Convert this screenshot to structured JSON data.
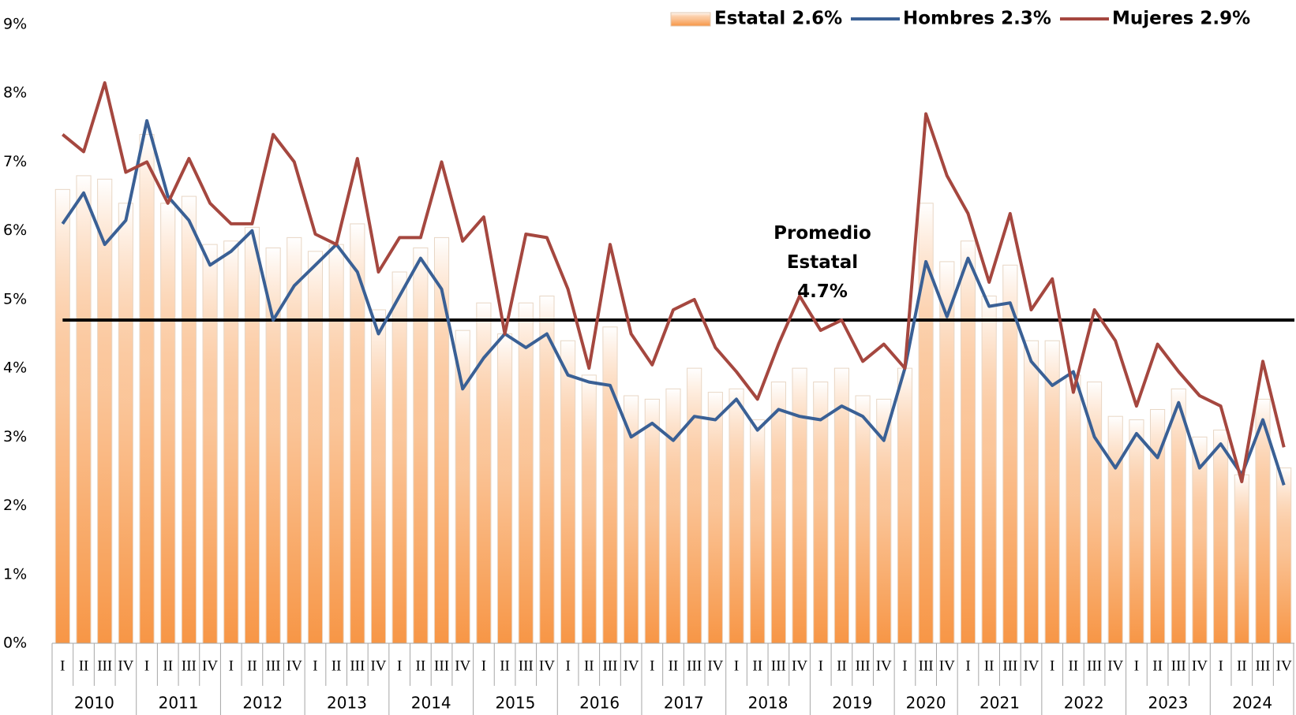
{
  "chart_data": {
    "type": "bar_line",
    "groups": [
      {
        "name": "2010",
        "categories": [
          "I",
          "II",
          "III",
          "IV"
        ]
      },
      {
        "name": "2011",
        "categories": [
          "I",
          "II",
          "III",
          "IV"
        ]
      },
      {
        "name": "2012",
        "categories": [
          "I",
          "II",
          "III",
          "IV"
        ]
      },
      {
        "name": "2013",
        "categories": [
          "I",
          "II",
          "III",
          "IV"
        ]
      },
      {
        "name": "2014",
        "categories": [
          "I",
          "II",
          "III",
          "IV"
        ]
      },
      {
        "name": "2015",
        "categories": [
          "I",
          "II",
          "III",
          "IV"
        ]
      },
      {
        "name": "2016",
        "categories": [
          "I",
          "II",
          "III",
          "IV"
        ]
      },
      {
        "name": "2017",
        "categories": [
          "I",
          "II",
          "III",
          "IV"
        ]
      },
      {
        "name": "2018",
        "categories": [
          "I",
          "II",
          "III",
          "IV"
        ]
      },
      {
        "name": "2019",
        "categories": [
          "I",
          "II",
          "III",
          "IV"
        ]
      },
      {
        "name": "2020",
        "categories": [
          "I",
          "III",
          "IV"
        ]
      },
      {
        "name": "2021",
        "categories": [
          "I",
          "II",
          "III",
          "IV"
        ]
      },
      {
        "name": "2022",
        "categories": [
          "I",
          "II",
          "III",
          "IV"
        ]
      },
      {
        "name": "2023",
        "categories": [
          "I",
          "II",
          "III",
          "IV"
        ]
      },
      {
        "name": "2024",
        "categories": [
          "I",
          "II",
          "III",
          "IV"
        ]
      }
    ],
    "series": [
      {
        "name": "Estatal 2.6%",
        "kind": "bar",
        "color": "#f79646",
        "values": [
          6.6,
          6.8,
          6.75,
          6.4,
          7.4,
          6.4,
          6.5,
          5.8,
          5.85,
          6.05,
          5.75,
          5.9,
          5.7,
          5.8,
          6.1,
          4.85,
          5.4,
          5.75,
          5.9,
          4.55,
          4.95,
          4.5,
          4.95,
          5.05,
          4.4,
          3.9,
          4.6,
          3.6,
          3.55,
          3.7,
          4.0,
          3.65,
          3.7,
          3.25,
          3.8,
          4.0,
          3.8,
          4.0,
          3.6,
          3.55,
          4.0,
          6.4,
          5.55,
          5.85,
          5.05,
          5.5,
          4.4,
          4.4,
          3.9,
          3.8,
          3.3,
          3.25,
          3.4,
          3.7,
          3.0,
          3.1,
          2.45,
          3.55,
          2.55
        ]
      },
      {
        "name": "Hombres 2.3%",
        "kind": "line",
        "color": "#3a6095",
        "values": [
          6.1,
          6.55,
          5.8,
          6.15,
          7.6,
          6.5,
          6.15,
          5.5,
          5.7,
          6.0,
          4.7,
          5.2,
          5.5,
          5.8,
          5.4,
          4.5,
          5.05,
          5.6,
          5.15,
          3.7,
          4.15,
          4.5,
          4.3,
          4.5,
          3.9,
          3.8,
          3.75,
          3.0,
          3.2,
          2.95,
          3.3,
          3.25,
          3.55,
          3.1,
          3.4,
          3.3,
          3.25,
          3.45,
          3.3,
          2.95,
          4.0,
          5.55,
          4.75,
          5.6,
          4.9,
          4.95,
          4.1,
          3.75,
          3.95,
          3.0,
          2.55,
          3.05,
          2.7,
          3.5,
          2.55,
          2.9,
          2.45,
          3.25,
          2.3
        ]
      },
      {
        "name": "Mujeres 2.9%",
        "kind": "line",
        "color": "#a5473f",
        "values": [
          7.4,
          7.15,
          8.15,
          6.85,
          7.0,
          6.4,
          7.05,
          6.4,
          6.1,
          6.1,
          7.4,
          7.0,
          5.95,
          5.8,
          7.05,
          5.4,
          5.9,
          5.9,
          7.0,
          5.85,
          6.2,
          4.5,
          5.95,
          5.9,
          5.15,
          4.0,
          5.8,
          4.5,
          4.05,
          4.85,
          5.0,
          4.3,
          3.95,
          3.55,
          4.35,
          5.05,
          4.55,
          4.7,
          4.1,
          4.35,
          4.0,
          7.7,
          6.8,
          6.25,
          5.25,
          6.25,
          4.85,
          5.3,
          3.65,
          4.85,
          4.4,
          3.45,
          4.35,
          3.95,
          3.6,
          3.45,
          2.35,
          4.1,
          2.85
        ]
      }
    ],
    "reference_line": {
      "value": 4.7,
      "color": "#000000",
      "label": [
        "Promedio",
        "Estatal",
        "4.7%"
      ]
    },
    "ylim": [
      0,
      9
    ],
    "yticks": [
      {
        "value": 0,
        "label": "0%"
      },
      {
        "value": 1,
        "label": "1%"
      },
      {
        "value": 2,
        "label": "2%"
      },
      {
        "value": 3,
        "label": "3%"
      },
      {
        "value": 4,
        "label": "4%"
      },
      {
        "value": 5,
        "label": "5%"
      },
      {
        "value": 6,
        "label": "6%"
      },
      {
        "value": 7,
        "label": "7%"
      },
      {
        "value": 8,
        "label": "8%"
      },
      {
        "value": 9,
        "label": "9%"
      }
    ],
    "legend": "top-right"
  }
}
